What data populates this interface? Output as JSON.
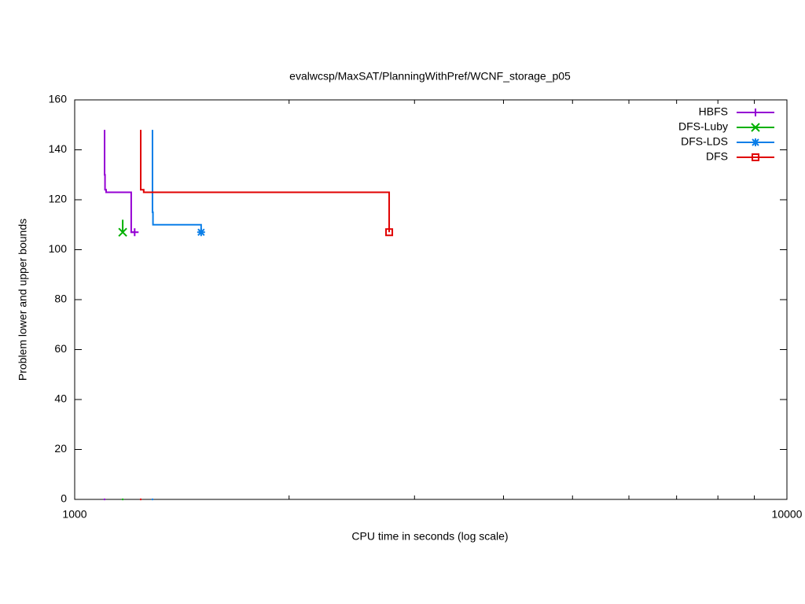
{
  "chart_data": {
    "type": "step-line",
    "title": "evalwcsp/MaxSAT/PlanningWithPref/WCNF_storage_p05",
    "x_label": "CPU time in seconds (log scale)",
    "y_label": "Problem lower and upper bounds",
    "xscale": "log",
    "xlim": [
      1000,
      10000
    ],
    "xticks": [
      1000,
      10000
    ],
    "xminor": [
      2000,
      3000,
      4000,
      5000,
      6000,
      7000,
      8000,
      9000
    ],
    "ylim": [
      0,
      160
    ],
    "yticks": [
      0,
      20,
      40,
      60,
      80,
      100,
      120,
      140,
      160
    ],
    "legend": "top-right",
    "series": [
      {
        "name": "HBFS",
        "color": "#9400d3",
        "marker": "plus",
        "x": [
          1101.5,
          1101.5,
          1103,
          1103,
          1107,
          1107,
          1200.5,
          1200.5,
          1214
        ],
        "values": [
          148,
          130,
          130,
          124,
          124,
          123,
          123,
          107,
          107
        ],
        "lower": {
          "x": 1101.5,
          "value": 0
        }
      },
      {
        "name": "DFS-Luby",
        "color": "#00b000",
        "marker": "cross",
        "x": [
          1168,
          1168
        ],
        "values": [
          112,
          107
        ],
        "lower": {
          "x": 1168,
          "value": 0
        }
      },
      {
        "name": "DFS-LDS",
        "color": "#0a7ee8",
        "marker": "star",
        "x": [
          1286,
          1286,
          1288,
          1288,
          1505,
          1505
        ],
        "values": [
          148,
          115,
          115,
          110,
          110,
          107
        ],
        "lower": {
          "x": 1286,
          "value": 0
        }
      },
      {
        "name": "DFS",
        "color": "#e00000",
        "marker": "square",
        "x": [
          1238,
          1238,
          1250,
          1250,
          2764,
          2764
        ],
        "values": [
          148,
          124,
          124,
          123,
          123,
          107
        ],
        "lower": {
          "x": 1238,
          "value": 0
        }
      }
    ]
  }
}
